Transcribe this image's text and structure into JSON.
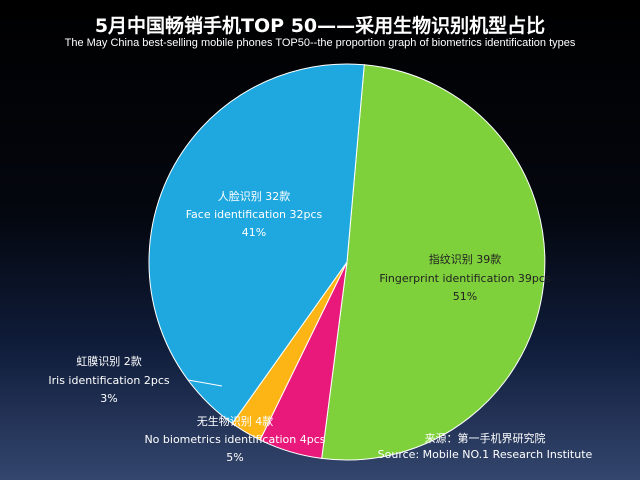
{
  "title": "5月中国畅销手机TOP 50——采用生物识别机型占比",
  "subtitle": "The May China best-selling mobile phones TOP50--the proportion graph of biometrics identification types",
  "chart_data": {
    "type": "pie",
    "slices": [
      {
        "cn": "指纹识别 39款",
        "en": "Fingerprint identification 39pcs",
        "count": 39,
        "pct": "51%",
        "color": "#7fd13b"
      },
      {
        "cn": "无生物识别 4款",
        "en": "No biometrics identification 4pcs",
        "count": 4,
        "pct": "5%",
        "color": "#e8197a"
      },
      {
        "cn": "虹膜识别 2款",
        "en": "Iris identification 2pcs",
        "count": 2,
        "pct": "3%",
        "color": "#fdb515"
      },
      {
        "cn": "人脸识别 32款",
        "en": "Face identification 32pcs",
        "count": 32,
        "pct": "41%",
        "color": "#1fa8e0"
      }
    ]
  },
  "source": {
    "cn": "来源：第一手机界研究院",
    "en": "Source: Mobile NO.1 Research Institute"
  }
}
